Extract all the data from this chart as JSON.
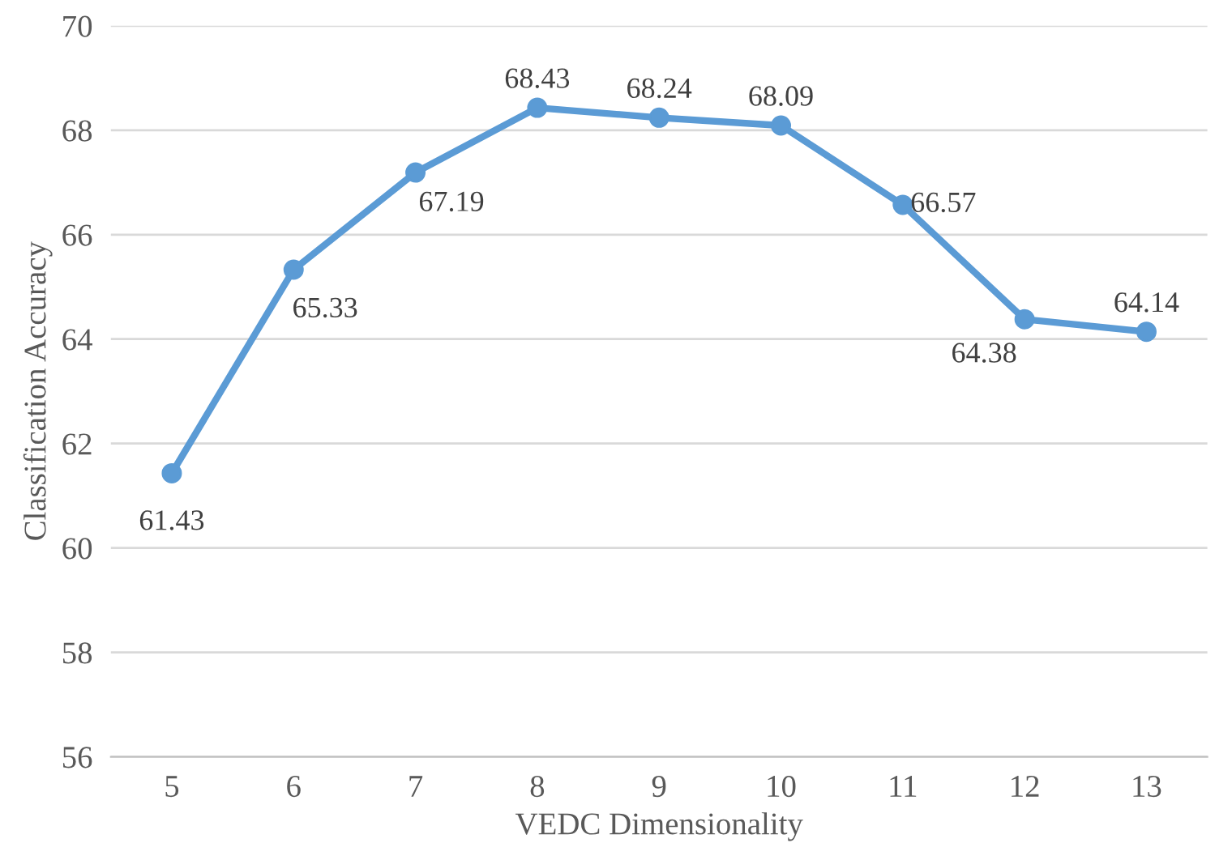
{
  "chart_data": {
    "type": "line",
    "xlabel": "VEDC Dimensionality",
    "ylabel": "Classification Accuracy",
    "categories": [
      "5",
      "6",
      "7",
      "8",
      "9",
      "10",
      "11",
      "12",
      "13"
    ],
    "series": [
      {
        "color": "#5b9bd5",
        "values": [
          61.43,
          65.33,
          67.19,
          68.43,
          68.24,
          68.09,
          66.57,
          64.38,
          64.14
        ]
      }
    ],
    "ylim": [
      56,
      70
    ],
    "yticks": [
      56,
      58,
      60,
      62,
      64,
      66,
      68,
      70
    ],
    "grid": "y",
    "marker": "circle",
    "line_style": "solid",
    "data_labels": true
  }
}
